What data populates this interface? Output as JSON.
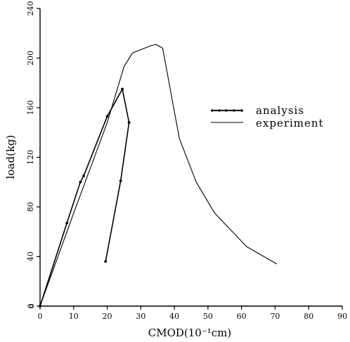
{
  "chart_data": {
    "type": "line",
    "xlabel": "CMOD(10⁻¹cm)",
    "ylabel": "load(kg)",
    "xlim": [
      0,
      90
    ],
    "ylim": [
      0,
      240
    ],
    "x_ticks": [
      0,
      10,
      20,
      30,
      40,
      50,
      60,
      70,
      80,
      90
    ],
    "y_ticks": [
      0,
      40,
      80,
      120,
      160,
      200,
      240
    ],
    "x_tick_labels": [
      "0",
      "10",
      "20",
      "30",
      "40",
      "50",
      "60",
      "70",
      "80",
      "90"
    ],
    "y_tick_labels": [
      "0",
      "40",
      "80",
      "120",
      "160",
      "200",
      "240"
    ],
    "legend_position": "right",
    "series": [
      {
        "name": "analysis",
        "style": "line-with-markers",
        "x": [
          0,
          8,
          12,
          13,
          20,
          24.5,
          26.5,
          24,
          19.5
        ],
        "y": [
          0,
          67,
          100,
          105,
          153,
          175,
          148,
          101,
          36
        ]
      },
      {
        "name": "experiment",
        "style": "thin-line",
        "x": [
          0,
          10,
          20,
          25,
          27.5,
          33,
          34.5,
          36.5,
          41.5,
          46.5,
          52,
          61.5,
          70.5
        ],
        "y": [
          0,
          75,
          148,
          193,
          204,
          210,
          211,
          208,
          135,
          100,
          75,
          48,
          34
        ]
      }
    ]
  }
}
